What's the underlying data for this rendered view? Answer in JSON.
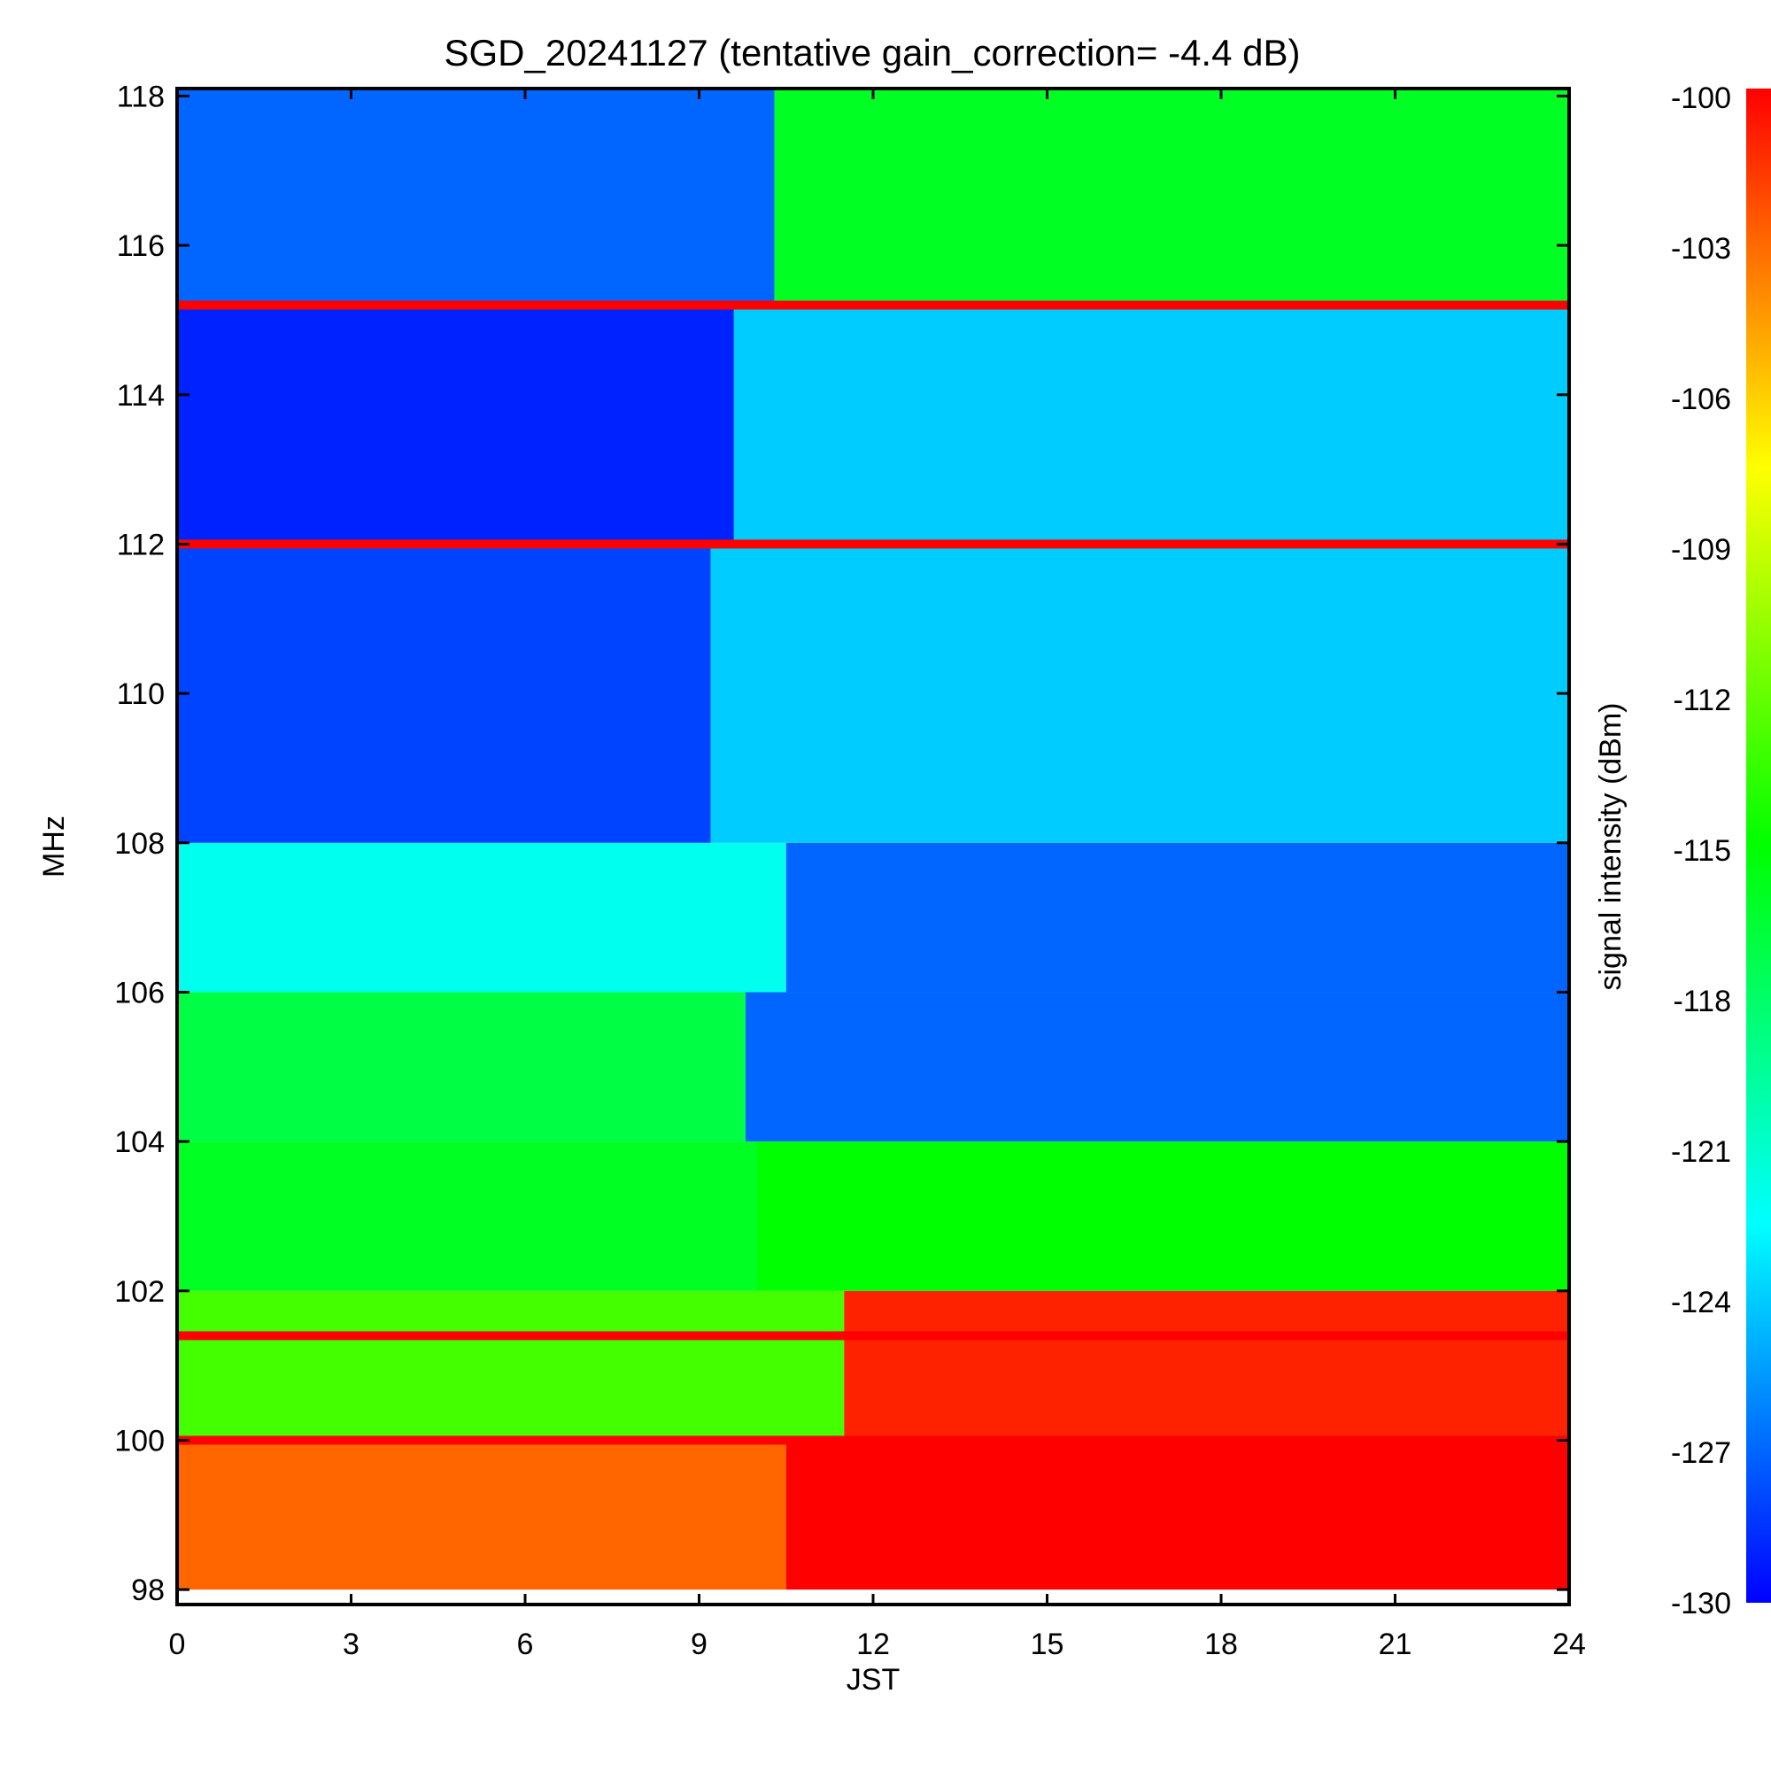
{
  "chart_data": {
    "type": "heatmap",
    "title": "SGD_20241127 (tentative gain_correction= -4.4 dB)",
    "xlabel": "JST",
    "ylabel": "MHz",
    "colorbar_label": "signal intensity (dBm)",
    "xlim": [
      0,
      24
    ],
    "ylim": [
      97.8,
      118.1
    ],
    "x_ticks": [
      0,
      3,
      6,
      9,
      12,
      15,
      18,
      21,
      24
    ],
    "y_ticks": [
      98,
      100,
      102,
      104,
      106,
      108,
      110,
      112,
      114,
      116,
      118
    ],
    "colorbar_range": [
      -130,
      -100
    ],
    "colorbar_ticks": [
      -100,
      -103,
      -106,
      -109,
      -112,
      -115,
      -118,
      -121,
      -124,
      -127,
      -130
    ],
    "colormap": "rainbow (blue low -> cyan -> green -> yellow -> red high)",
    "strong_constant_lines_mhz": [
      100.0,
      101.4,
      112.0,
      115.2
    ],
    "band_regions": [
      {
        "freq_range": [
          98.0,
          100.0
        ],
        "before_transition_dbm": -103,
        "after_transition_dbm": -100,
        "transition_jst": 10.5
      },
      {
        "freq_range": [
          100.0,
          102.0
        ],
        "before_transition_dbm": -113,
        "after_transition_dbm": -101,
        "transition_jst": 11.5
      },
      {
        "freq_range": [
          102.0,
          104.0
        ],
        "before_transition_dbm": -116,
        "after_transition_dbm": -115,
        "transition_jst": 10.0
      },
      {
        "freq_range": [
          104.0,
          106.0
        ],
        "before_transition_dbm": -117,
        "after_transition_dbm": -127,
        "transition_jst": 9.8
      },
      {
        "freq_range": [
          106.0,
          108.0
        ],
        "before_transition_dbm": -122,
        "after_transition_dbm": -127,
        "transition_jst": 10.5
      },
      {
        "freq_range": [
          108.0,
          112.0
        ],
        "before_transition_dbm": -128,
        "after_transition_dbm": -124,
        "transition_jst": 9.2
      },
      {
        "freq_range": [
          112.0,
          115.2
        ],
        "before_transition_dbm": -129,
        "after_transition_dbm": -124,
        "transition_jst": 9.6
      },
      {
        "freq_range": [
          115.2,
          118.1
        ],
        "before_transition_dbm": -127,
        "after_transition_dbm": -116,
        "transition_jst": 10.3
      }
    ]
  }
}
